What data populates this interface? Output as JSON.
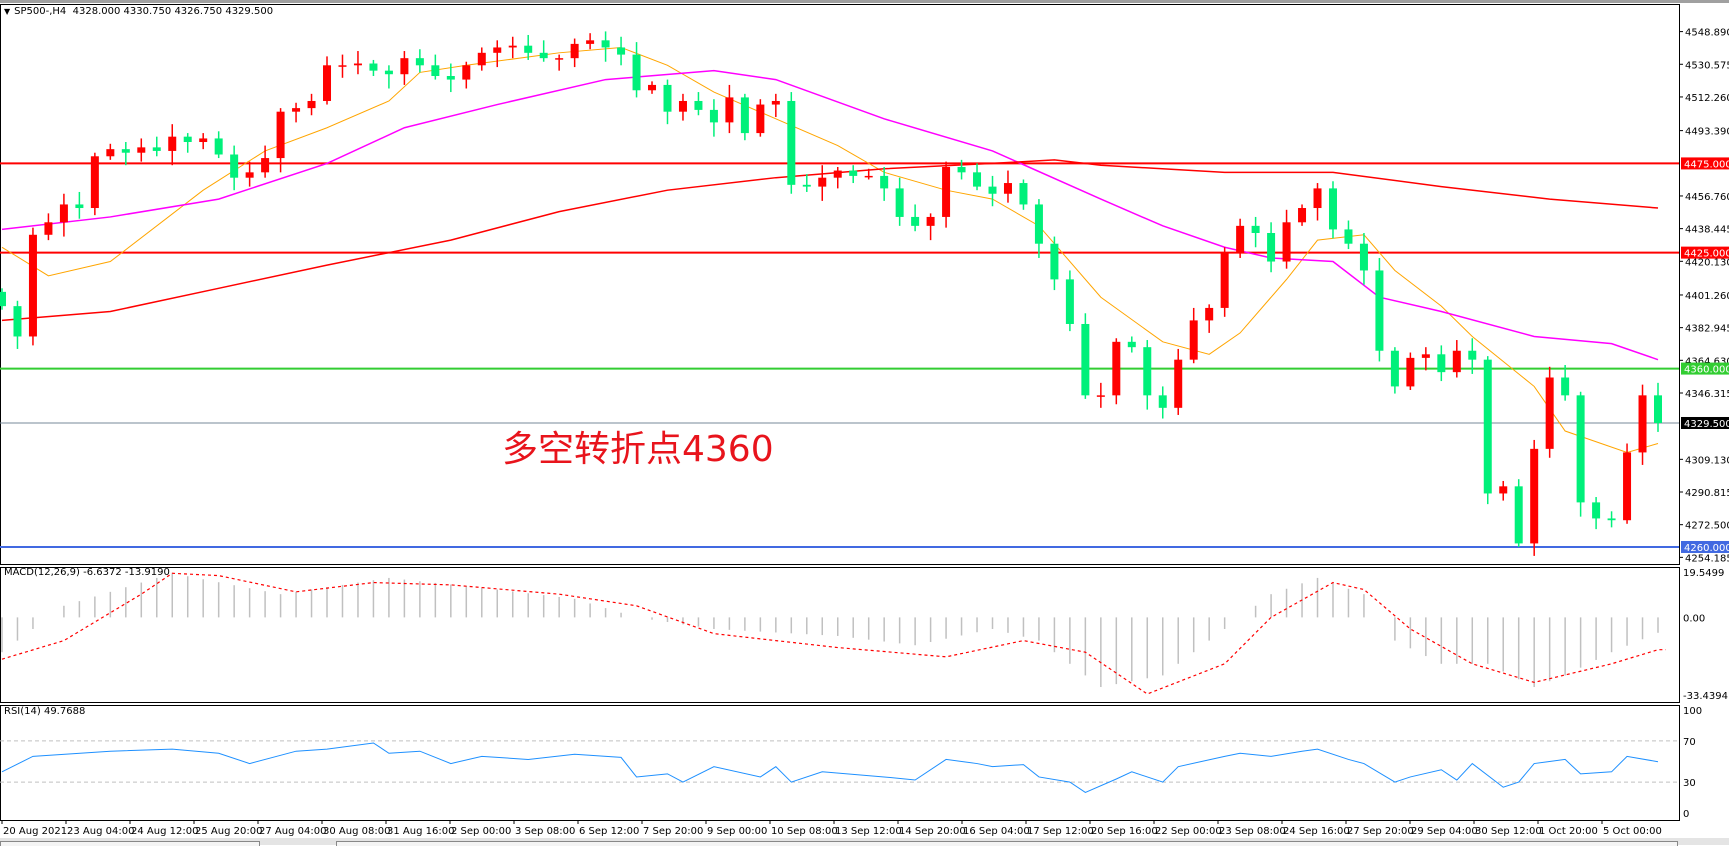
{
  "header": {
    "symbol": "SP500-,H4",
    "ohlc": "4328.000 4330.750 4326.750 4329.500"
  },
  "annotation": "多空转折点4360",
  "macd_label": "MACD(12,26,9) -6.6372 -13.9190",
  "rsi_label": "RSI(14) 49.7688",
  "colors": {
    "bull_candle": "#ff0000",
    "bear_candle": "#00f07a",
    "ma_fast": "#ffa500",
    "ma_mid": "#ff00ff",
    "ma_slow": "#ff0000",
    "macd_hist": "#c0c0c0",
    "macd_signal": "#ff0000",
    "rsi_line": "#1e90ff"
  },
  "chart_data": [
    {
      "type": "candlestick",
      "panel": "price",
      "ylim": [
        4254.185,
        4548.89
      ],
      "price_ticks": [
        "4548.890",
        "4530.575",
        "4512.260",
        "4493.390",
        "4456.760",
        "4438.445",
        "4420.130",
        "4401.260",
        "4382.945",
        "4364.630",
        "4346.315",
        "4309.130",
        "4290.815",
        "4272.500",
        "4254.185"
      ],
      "horizontal_lines": [
        {
          "price": 4475.0,
          "label": "4475.000",
          "color": "#ff0000"
        },
        {
          "price": 4425.0,
          "label": "4425.000",
          "color": "#ff0000"
        },
        {
          "price": 4360.0,
          "label": "4360.000",
          "color": "#32cd32"
        },
        {
          "price": 4329.5,
          "label": "4329.500",
          "color": "#778899",
          "label_bg": "#000000"
        },
        {
          "price": 4260.0,
          "label": "4260.000",
          "color": "#4169e1"
        }
      ],
      "time_labels": [
        "20 Aug 2021",
        "23 Aug 04:00",
        "24 Aug 12:00",
        "25 Aug 20:00",
        "27 Aug 04:00",
        "30 Aug 08:00",
        "31 Aug 16:00",
        "2 Sep 00:00",
        "3 Sep 08:00",
        "6 Sep 12:00",
        "7 Sep 20:00",
        "9 Sep 00:00",
        "10 Sep 08:00",
        "13 Sep 12:00",
        "14 Sep 20:00",
        "16 Sep 04:00",
        "17 Sep 12:00",
        "20 Sep 16:00",
        "22 Sep 00:00",
        "23 Sep 08:00",
        "24 Sep 16:00",
        "27 Sep 20:00",
        "29 Sep 04:00",
        "30 Sep 12:00",
        "1 Oct 20:00",
        "5 Oct 00:00"
      ],
      "closes": [
        4395,
        4378,
        4435,
        4442,
        4452,
        4450,
        4479,
        4483,
        4481,
        4484,
        4482,
        4490,
        4487,
        4489,
        4480,
        4467,
        4470,
        4478,
        4504,
        4506,
        4510,
        4530,
        4530,
        4531,
        4527,
        4525,
        4534,
        4530,
        4524,
        4522,
        4530,
        4537,
        4540,
        4541,
        4537,
        4534,
        4534,
        4542,
        4544,
        4540,
        4536,
        4516,
        4519,
        4504,
        4510,
        4505,
        4498,
        4512,
        4492,
        4508,
        4510,
        4463,
        4462,
        4467,
        4471,
        4468,
        4468,
        4461,
        4445,
        4440,
        4445,
        4473,
        4470,
        4462,
        4458,
        4464,
        4452,
        4430,
        4410,
        4385,
        4345,
        4345,
        4375,
        4372,
        4345,
        4338,
        4365,
        4387,
        4394,
        4425,
        4440,
        4436,
        4420,
        4442,
        4450,
        4461,
        4438,
        4430,
        4415,
        4370,
        4350,
        4366,
        4368,
        4358,
        4370,
        4365,
        4290,
        4294,
        4262,
        4315,
        4355,
        4345,
        4285,
        4276,
        4275,
        4313,
        4345,
        4329.5
      ],
      "moving_averages": [
        {
          "color": "#ffa500",
          "points": [
            [
              0,
              4428
            ],
            [
              3,
              4412
            ],
            [
              7,
              4420
            ],
            [
              13,
              4460
            ],
            [
              17,
              4482
            ],
            [
              21,
              4495
            ],
            [
              25,
              4510
            ],
            [
              27,
              4526
            ],
            [
              30,
              4530
            ],
            [
              36,
              4537
            ],
            [
              40,
              4540
            ],
            [
              43,
              4530
            ],
            [
              46,
              4515
            ],
            [
              50,
              4500
            ],
            [
              54,
              4485
            ],
            [
              57,
              4470
            ],
            [
              61,
              4460
            ],
            [
              64,
              4455
            ],
            [
              67,
              4440
            ],
            [
              71,
              4400
            ],
            [
              75,
              4375
            ],
            [
              78,
              4368
            ],
            [
              80,
              4380
            ],
            [
              83,
              4410
            ],
            [
              85,
              4432
            ],
            [
              88,
              4435
            ],
            [
              90,
              4415
            ],
            [
              93,
              4395
            ],
            [
              95,
              4378
            ],
            [
              99,
              4350
            ],
            [
              101,
              4325
            ],
            [
              105,
              4313
            ],
            [
              107,
              4318
            ]
          ]
        },
        {
          "color": "#ff00ff",
          "points": [
            [
              0,
              4438
            ],
            [
              7,
              4445
            ],
            [
              14,
              4455
            ],
            [
              21,
              4475
            ],
            [
              26,
              4495
            ],
            [
              32,
              4508
            ],
            [
              39,
              4522
            ],
            [
              46,
              4527
            ],
            [
              50,
              4522
            ],
            [
              57,
              4500
            ],
            [
              64,
              4482
            ],
            [
              71,
              4455
            ],
            [
              75,
              4440
            ],
            [
              79,
              4428
            ],
            [
              82,
              4422
            ],
            [
              86,
              4420
            ],
            [
              89,
              4400
            ],
            [
              93,
              4392
            ],
            [
              99,
              4378
            ],
            [
              104,
              4374
            ],
            [
              107,
              4365
            ]
          ]
        },
        {
          "color": "#ff0000",
          "points": [
            [
              0,
              4387
            ],
            [
              7,
              4392
            ],
            [
              14,
              4405
            ],
            [
              21,
              4418
            ],
            [
              29,
              4432
            ],
            [
              36,
              4448
            ],
            [
              43,
              4460
            ],
            [
              50,
              4467
            ],
            [
              57,
              4472
            ],
            [
              64,
              4475
            ],
            [
              68,
              4477
            ],
            [
              71,
              4474
            ],
            [
              79,
              4470
            ],
            [
              86,
              4470
            ],
            [
              93,
              4462
            ],
            [
              100,
              4455
            ],
            [
              107,
              4450
            ]
          ]
        }
      ]
    },
    {
      "type": "bar",
      "panel": "macd",
      "ylim": [
        -33.4394,
        19.5499
      ],
      "ticks": [
        "19.5499",
        "0.00",
        "-33.4394"
      ],
      "histogram_points": [
        [
          0,
          -15
        ],
        [
          4,
          5
        ],
        [
          11,
          19
        ],
        [
          18,
          10
        ],
        [
          25,
          17
        ],
        [
          32,
          12
        ],
        [
          37,
          8
        ],
        [
          41,
          0
        ],
        [
          46,
          -5
        ],
        [
          54,
          -8
        ],
        [
          59,
          -12
        ],
        [
          64,
          -5
        ],
        [
          67,
          -10
        ],
        [
          71,
          -30
        ],
        [
          75,
          -25
        ],
        [
          79,
          -5
        ],
        [
          82,
          10
        ],
        [
          85,
          17
        ],
        [
          88,
          10
        ],
        [
          90,
          -10
        ],
        [
          93,
          -20
        ],
        [
          96,
          -20
        ],
        [
          99,
          -30
        ],
        [
          101,
          -25
        ],
        [
          104,
          -15
        ],
        [
          107,
          -6.6372
        ]
      ],
      "signal_points": [
        [
          0,
          -18
        ],
        [
          4,
          -10
        ],
        [
          9,
          10
        ],
        [
          11,
          19
        ],
        [
          14,
          18
        ],
        [
          19,
          11
        ],
        [
          24,
          15
        ],
        [
          29,
          14
        ],
        [
          36,
          10
        ],
        [
          41,
          5
        ],
        [
          46,
          -7
        ],
        [
          54,
          -13
        ],
        [
          61,
          -17
        ],
        [
          66,
          -10
        ],
        [
          70,
          -15
        ],
        [
          74,
          -33
        ],
        [
          79,
          -20
        ],
        [
          82,
          0
        ],
        [
          86,
          15
        ],
        [
          88,
          12
        ],
        [
          91,
          -5
        ],
        [
          95,
          -20
        ],
        [
          99,
          -28
        ],
        [
          104,
          -20
        ],
        [
          107,
          -13.919
        ]
      ]
    },
    {
      "type": "line",
      "panel": "rsi",
      "ylim": [
        0,
        100
      ],
      "ticks": [
        "100",
        "70",
        "30",
        "0"
      ],
      "levels": [
        70,
        30
      ],
      "points": [
        [
          0,
          40
        ],
        [
          2,
          55
        ],
        [
          7,
          60
        ],
        [
          11,
          62
        ],
        [
          14,
          58
        ],
        [
          16,
          48
        ],
        [
          19,
          60
        ],
        [
          21,
          62
        ],
        [
          24,
          68
        ],
        [
          25,
          58
        ],
        [
          27,
          60
        ],
        [
          29,
          48
        ],
        [
          31,
          55
        ],
        [
          34,
          52
        ],
        [
          37,
          57
        ],
        [
          40,
          54
        ],
        [
          41,
          35
        ],
        [
          43,
          38
        ],
        [
          44,
          30
        ],
        [
          46,
          45
        ],
        [
          49,
          35
        ],
        [
          50,
          45
        ],
        [
          51,
          30
        ],
        [
          53,
          40
        ],
        [
          57,
          35
        ],
        [
          59,
          32
        ],
        [
          61,
          52
        ],
        [
          63,
          48
        ],
        [
          64,
          45
        ],
        [
          66,
          47
        ],
        [
          67,
          35
        ],
        [
          69,
          30
        ],
        [
          70,
          20
        ],
        [
          72,
          33
        ],
        [
          73,
          40
        ],
        [
          75,
          30
        ],
        [
          76,
          45
        ],
        [
          79,
          55
        ],
        [
          80,
          58
        ],
        [
          82,
          55
        ],
        [
          84,
          60
        ],
        [
          85,
          62
        ],
        [
          87,
          52
        ],
        [
          88,
          48
        ],
        [
          90,
          30
        ],
        [
          91,
          35
        ],
        [
          93,
          42
        ],
        [
          94,
          32
        ],
        [
          95,
          48
        ],
        [
          97,
          25
        ],
        [
          98,
          30
        ],
        [
          99,
          48
        ],
        [
          101,
          52
        ],
        [
          102,
          38
        ],
        [
          104,
          40
        ],
        [
          105,
          55
        ],
        [
          107,
          49.7688
        ]
      ]
    }
  ]
}
